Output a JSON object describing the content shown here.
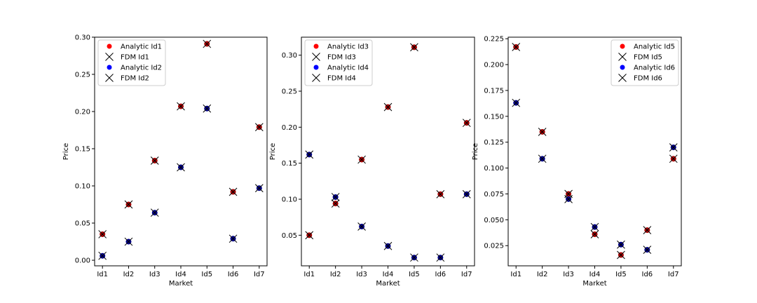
{
  "colors": {
    "analytic_a": "#ff0000",
    "analytic_b": "#0000ff",
    "fdm": "#000000",
    "overlap_a": "#aa0000",
    "overlap_b": "#000088"
  },
  "chart_data": [
    {
      "type": "scatter",
      "xlabel": "Market",
      "ylabel": "Price",
      "categories": [
        "Id1",
        "Id2",
        "Id3",
        "Id4",
        "Id5",
        "Id6",
        "Id7"
      ],
      "ylim": [
        -0.0075,
        0.3
      ],
      "yticks": [
        "0.00",
        "0.05",
        "0.10",
        "0.15",
        "0.20",
        "0.25",
        "0.30"
      ],
      "legend_loc": "upper-left",
      "series": [
        {
          "name": "Analytic Id1",
          "marker": "circle",
          "color": "red",
          "values": [
            0.035,
            0.075,
            0.134,
            0.207,
            0.291,
            0.092,
            0.179
          ]
        },
        {
          "name": "FDM Id1",
          "marker": "x",
          "color": "black",
          "values": [
            0.035,
            0.075,
            0.134,
            0.207,
            0.291,
            0.092,
            0.179
          ]
        },
        {
          "name": "Analytic Id2",
          "marker": "circle",
          "color": "blue",
          "values": [
            0.006,
            0.025,
            0.064,
            0.125,
            0.204,
            0.029,
            0.097
          ]
        },
        {
          "name": "FDM Id2",
          "marker": "x",
          "color": "black",
          "values": [
            0.006,
            0.025,
            0.064,
            0.125,
            0.204,
            0.029,
            0.097
          ]
        }
      ]
    },
    {
      "type": "scatter",
      "xlabel": "Market",
      "ylabel": "Price",
      "categories": [
        "Id1",
        "Id2",
        "Id3",
        "Id4",
        "Id5",
        "Id6",
        "Id7"
      ],
      "ylim": [
        0.0075,
        0.325
      ],
      "yticks": [
        "0.05",
        "0.10",
        "0.15",
        "0.20",
        "0.25",
        "0.30"
      ],
      "legend_loc": "upper-left",
      "series": [
        {
          "name": "Analytic Id3",
          "marker": "circle",
          "color": "red",
          "values": [
            0.05,
            0.094,
            0.155,
            0.228,
            0.311,
            0.107,
            0.206
          ]
        },
        {
          "name": "FDM Id3",
          "marker": "x",
          "color": "black",
          "values": [
            0.05,
            0.094,
            0.155,
            0.228,
            0.311,
            0.107,
            0.206
          ]
        },
        {
          "name": "Analytic Id4",
          "marker": "circle",
          "color": "blue",
          "values": [
            0.162,
            0.103,
            0.062,
            0.035,
            0.019,
            0.019,
            0.107
          ]
        },
        {
          "name": "FDM Id4",
          "marker": "x",
          "color": "black",
          "values": [
            0.162,
            0.103,
            0.062,
            0.035,
            0.019,
            0.019,
            0.107
          ]
        }
      ]
    },
    {
      "type": "scatter",
      "xlabel": "Market",
      "ylabel": "Price",
      "categories": [
        "Id1",
        "Id2",
        "Id3",
        "Id4",
        "Id5",
        "Id6",
        "Id7"
      ],
      "ylim": [
        0.0055,
        0.2265
      ],
      "yticks": [
        "0.025",
        "0.050",
        "0.075",
        "0.100",
        "0.125",
        "0.150",
        "0.175",
        "0.200",
        "0.225"
      ],
      "legend_loc": "upper-right",
      "series": [
        {
          "name": "Analytic Id5",
          "marker": "circle",
          "color": "red",
          "values": [
            0.217,
            0.135,
            0.075,
            0.036,
            0.016,
            0.04,
            0.109
          ]
        },
        {
          "name": "FDM Id5",
          "marker": "x",
          "color": "black",
          "values": [
            0.217,
            0.135,
            0.075,
            0.036,
            0.016,
            0.04,
            0.109
          ]
        },
        {
          "name": "Analytic Id6",
          "marker": "circle",
          "color": "blue",
          "values": [
            0.163,
            0.109,
            0.07,
            0.043,
            0.026,
            0.021,
            0.12
          ]
        },
        {
          "name": "FDM Id6",
          "marker": "x",
          "color": "black",
          "values": [
            0.163,
            0.109,
            0.07,
            0.043,
            0.026,
            0.021,
            0.12
          ]
        }
      ]
    }
  ]
}
